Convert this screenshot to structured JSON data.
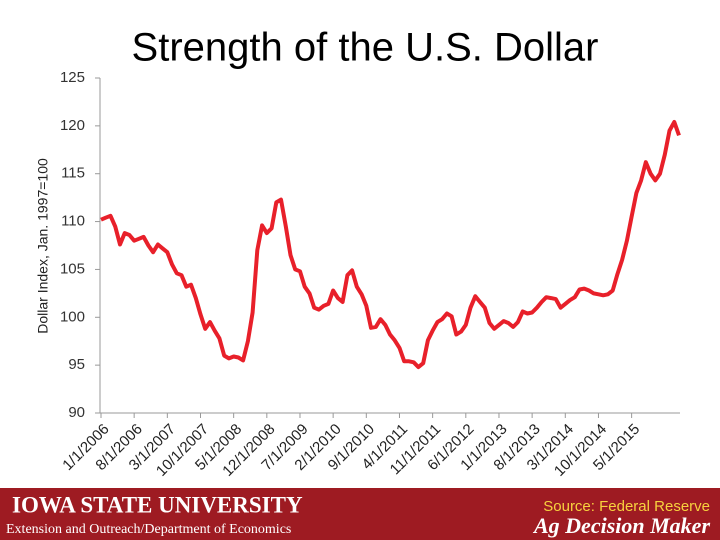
{
  "chart_data": {
    "type": "line",
    "title": "Strength of the U.S. Dollar",
    "y_label": "Dollar Index, Jan. 1997=100",
    "source": "Source: Federal Reserve",
    "color": "#e8202a",
    "grid": false,
    "ylim": [
      90,
      125
    ],
    "yticks": [
      90,
      95,
      100,
      105,
      110,
      115,
      120,
      125
    ],
    "categories": [
      "1/1/2006",
      null,
      null,
      null,
      null,
      null,
      null,
      "8/1/2006",
      null,
      null,
      null,
      null,
      null,
      null,
      "3/1/2007",
      null,
      null,
      null,
      null,
      null,
      null,
      "10/1/2007",
      null,
      null,
      null,
      null,
      null,
      null,
      "5/1/2008",
      null,
      null,
      null,
      null,
      null,
      null,
      "12/1/2008",
      null,
      null,
      null,
      null,
      null,
      null,
      "7/1/2009",
      null,
      null,
      null,
      null,
      null,
      null,
      "2/1/2010",
      null,
      null,
      null,
      null,
      null,
      null,
      "9/1/2010",
      null,
      null,
      null,
      null,
      null,
      null,
      "4/1/2011",
      null,
      null,
      null,
      null,
      null,
      null,
      "11/1/2011",
      null,
      null,
      null,
      null,
      null,
      null,
      "6/1/2012",
      null,
      null,
      null,
      null,
      null,
      null,
      "1/1/2013",
      null,
      null,
      null,
      null,
      null,
      null,
      "8/1/2013",
      null,
      null,
      null,
      null,
      null,
      null,
      "3/1/2014",
      null,
      null,
      null,
      null,
      null,
      null,
      "10/1/2014",
      null,
      null,
      null,
      null,
      null,
      null,
      "5/1/2015",
      null,
      null,
      null,
      null,
      null,
      null,
      null,
      null,
      null,
      null
    ],
    "values": [
      110.2,
      110.4,
      110.6,
      109.5,
      107.6,
      108.8,
      108.6,
      108.0,
      108.2,
      108.4,
      107.5,
      106.8,
      107.6,
      107.2,
      106.8,
      105.5,
      104.6,
      104.4,
      103.2,
      103.4,
      102.0,
      100.3,
      98.8,
      99.5,
      98.6,
      97.8,
      96.0,
      95.7,
      95.9,
      95.8,
      95.5,
      97.5,
      100.5,
      107.0,
      109.6,
      108.8,
      109.3,
      112.0,
      112.3,
      109.5,
      106.5,
      105.0,
      104.8,
      103.2,
      102.5,
      101.0,
      100.8,
      101.2,
      101.4,
      102.8,
      102.0,
      101.6,
      104.4,
      104.9,
      103.2,
      102.4,
      101.2,
      98.9,
      99.0,
      99.8,
      99.2,
      98.2,
      97.6,
      96.8,
      95.4,
      95.4,
      95.3,
      94.8,
      95.2,
      97.6,
      98.6,
      99.5,
      99.8,
      100.4,
      100.1,
      98.2,
      98.5,
      99.2,
      101.0,
      102.2,
      101.6,
      101.0,
      99.4,
      98.8,
      99.2,
      99.6,
      99.4,
      99.0,
      99.5,
      100.6,
      100.4,
      100.5,
      101.0,
      101.6,
      102.1,
      102.0,
      101.9,
      101.0,
      101.4,
      101.8,
      102.1,
      102.9,
      103.0,
      102.8,
      102.5,
      102.4,
      102.3,
      102.4,
      102.8,
      104.5,
      106.0,
      108.0,
      110.5,
      113.0,
      114.3,
      116.2,
      115.0,
      114.3,
      115.0,
      117.0,
      119.5,
      120.4,
      119.0
    ]
  },
  "footer": {
    "university": "IOWA STATE UNIVERSITY",
    "department": "Extension and Outreach/Department of Economics",
    "program": "Ag Decision Maker"
  }
}
